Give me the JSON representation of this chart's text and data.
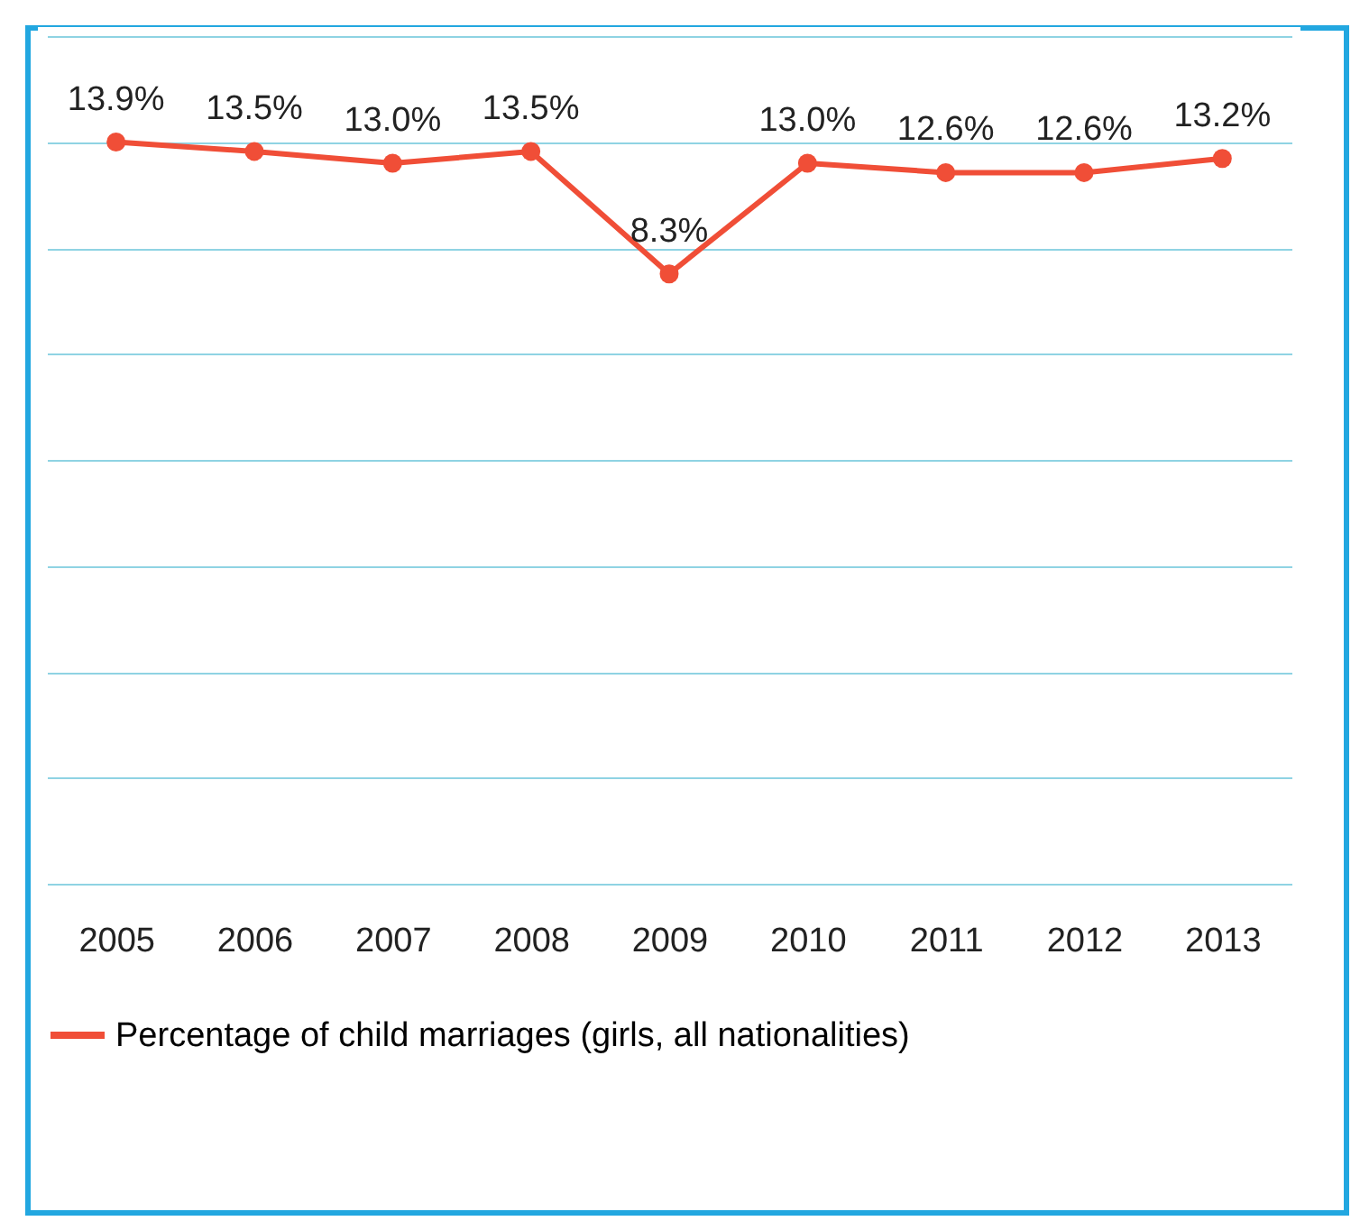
{
  "chart_data": {
    "type": "line",
    "categories": [
      "2005",
      "2006",
      "2007",
      "2008",
      "2009",
      "2010",
      "2011",
      "2012",
      "2013"
    ],
    "series": [
      {
        "name": "Percentage of child marriages (girls, all nationalities)",
        "color": "#f04e37",
        "values": [
          13.9,
          13.5,
          13.0,
          13.5,
          8.3,
          13.0,
          12.6,
          12.6,
          13.2
        ],
        "value_labels": [
          "13.9%",
          "13.5%",
          "13.0%",
          "13.5%",
          "8.3%",
          "13.0%",
          "12.6%",
          "12.6%",
          "13.2%"
        ]
      }
    ],
    "ylim": [
      -17.6,
      18.4
    ],
    "yticks": [
      {
        "value": -17.6,
        "label": null
      },
      {
        "value": -13.1,
        "label": null
      },
      {
        "value": -8.6,
        "label": null
      },
      {
        "value": -4.1,
        "label": null
      },
      {
        "value": 0.4,
        "label": null
      },
      {
        "value": 4.9,
        "label": null
      },
      {
        "value": 9.4,
        "label": null
      },
      {
        "value": 13.9,
        "label": null
      },
      {
        "value": 18.4,
        "label": null
      }
    ],
    "grid": "y",
    "legend": "bottom",
    "marker": "circle",
    "line_style": "solid"
  }
}
